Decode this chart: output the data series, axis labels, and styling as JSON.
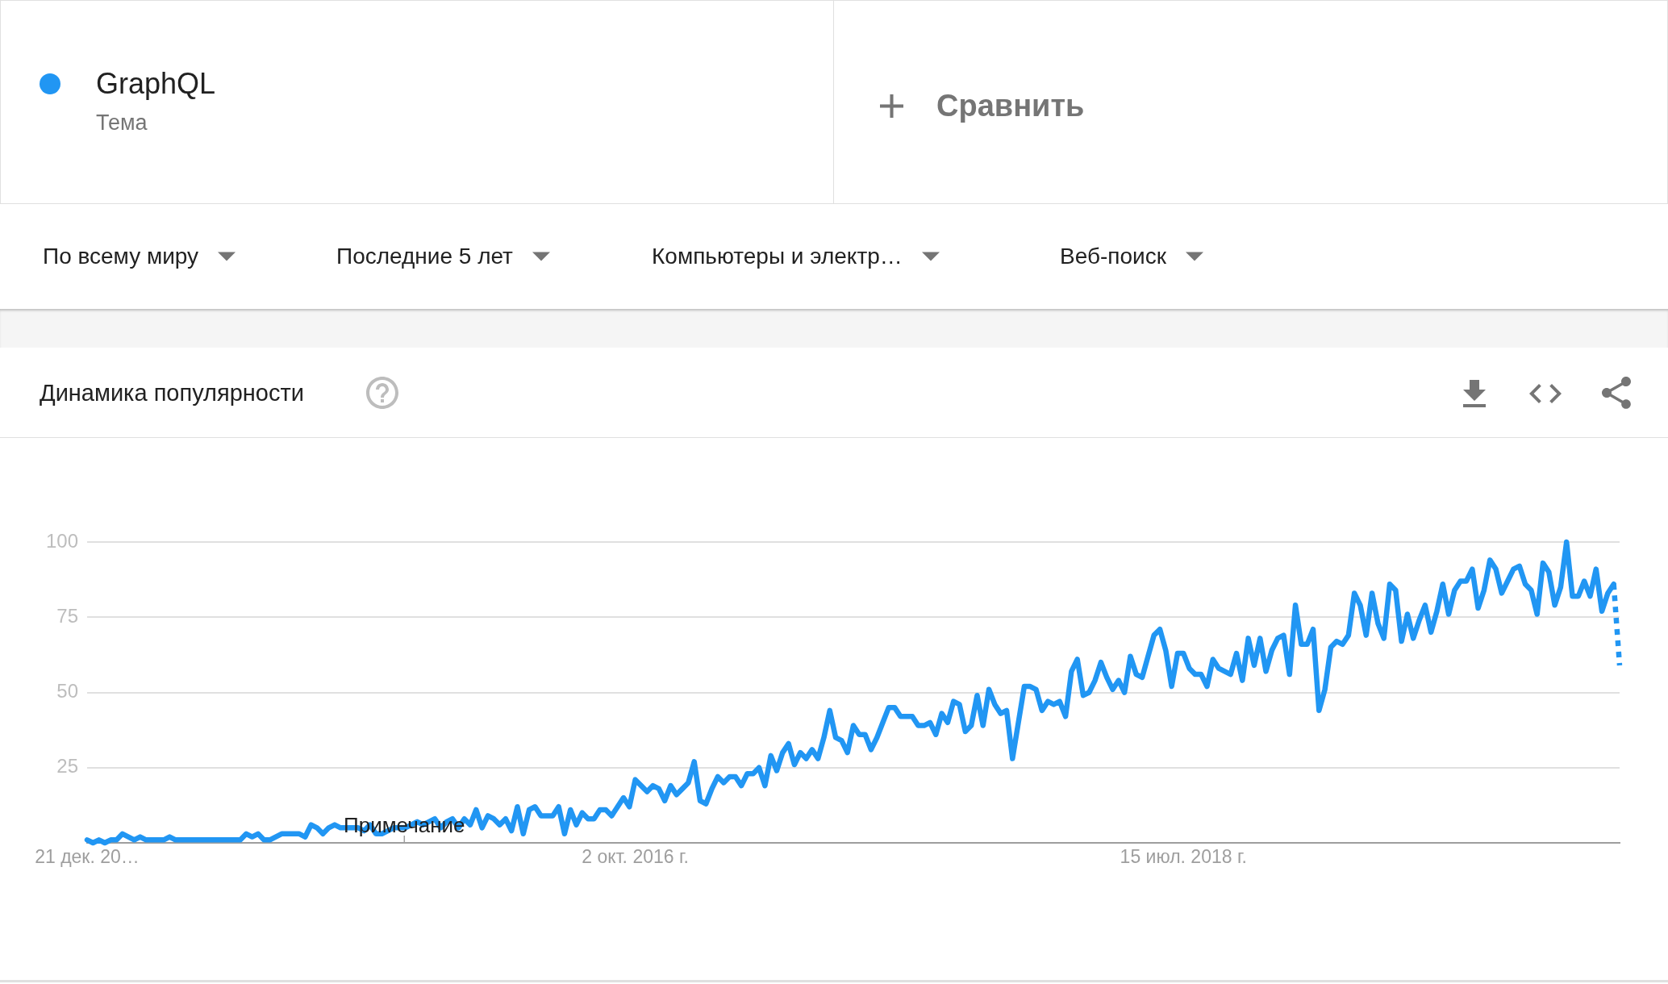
{
  "chart_data": {
    "type": "line",
    "title": "Динамика популярности",
    "legend": "top left",
    "grid": "y",
    "annotations": [
      "Тема",
      "Сравнить",
      "По всему миру",
      "Последние 5 лет",
      "Компьютеры и электр…",
      "Веб-поиск",
      "Примечание"
    ],
    "x": [
      "2014-12-21",
      "2014-12-28",
      "2015-01-04",
      "2015-01-11",
      "2015-01-18",
      "2015-01-25",
      "2015-02-01",
      "2015-02-08",
      "2015-02-15",
      "2015-02-22",
      "2015-03-01",
      "2015-03-08",
      "2015-03-15",
      "2015-03-22",
      "2015-03-29",
      "2015-04-05",
      "2015-04-12",
      "2015-04-19",
      "2015-04-26",
      "2015-05-03",
      "2015-05-10",
      "2015-05-17",
      "2015-05-24",
      "2015-05-31",
      "2015-06-07",
      "2015-06-14",
      "2015-06-21",
      "2015-06-28",
      "2015-07-05",
      "2015-07-12",
      "2015-07-19",
      "2015-07-26",
      "2015-08-02",
      "2015-08-09",
      "2015-08-16",
      "2015-08-23",
      "2015-08-30",
      "2015-09-06",
      "2015-09-13",
      "2015-09-20",
      "2015-09-27",
      "2015-10-04",
      "2015-10-11",
      "2015-10-18",
      "2015-10-25",
      "2015-11-01",
      "2015-11-08",
      "2015-11-15",
      "2015-11-22",
      "2015-11-29",
      "2015-12-06",
      "2015-12-13",
      "2015-12-20",
      "2015-12-27",
      "2016-01-03",
      "2016-01-10",
      "2016-01-17",
      "2016-01-24",
      "2016-01-31",
      "2016-02-07",
      "2016-02-14",
      "2016-02-21",
      "2016-02-28",
      "2016-03-06",
      "2016-03-13",
      "2016-03-20",
      "2016-03-27",
      "2016-04-03",
      "2016-04-10",
      "2016-04-17",
      "2016-04-24",
      "2016-05-01",
      "2016-05-08",
      "2016-05-15",
      "2016-05-22",
      "2016-05-29",
      "2016-06-05",
      "2016-06-12",
      "2016-06-19",
      "2016-06-26",
      "2016-07-03",
      "2016-07-10",
      "2016-07-17",
      "2016-07-24",
      "2016-07-31",
      "2016-08-07",
      "2016-08-14",
      "2016-08-21",
      "2016-08-28",
      "2016-09-04",
      "2016-09-11",
      "2016-09-18",
      "2016-09-25",
      "2016-10-02",
      "2016-10-09",
      "2016-10-16",
      "2016-10-23",
      "2016-10-30",
      "2016-11-06",
      "2016-11-13",
      "2016-11-20",
      "2016-11-27",
      "2016-12-04",
      "2016-12-11",
      "2016-12-18",
      "2016-12-25",
      "2017-01-01",
      "2017-01-08",
      "2017-01-15",
      "2017-01-22",
      "2017-01-29",
      "2017-02-05",
      "2017-02-12",
      "2017-02-19",
      "2017-02-26",
      "2017-03-05",
      "2017-03-12",
      "2017-03-19",
      "2017-03-26",
      "2017-04-02",
      "2017-04-09",
      "2017-04-16",
      "2017-04-23",
      "2017-04-30",
      "2017-05-07",
      "2017-05-14",
      "2017-05-21",
      "2017-05-28",
      "2017-06-04",
      "2017-06-11",
      "2017-06-18",
      "2017-06-25",
      "2017-07-02",
      "2017-07-09",
      "2017-07-16",
      "2017-07-23",
      "2017-07-30",
      "2017-08-06",
      "2017-08-13",
      "2017-08-20",
      "2017-08-27",
      "2017-09-03",
      "2017-09-10",
      "2017-09-17",
      "2017-09-24",
      "2017-10-01",
      "2017-10-08",
      "2017-10-15",
      "2017-10-22",
      "2017-10-29",
      "2017-11-05",
      "2017-11-12",
      "2017-11-19",
      "2017-11-26",
      "2017-12-03",
      "2017-12-10",
      "2017-12-17",
      "2017-12-24",
      "2017-12-31",
      "2018-01-07",
      "2018-01-14",
      "2018-01-21",
      "2018-01-28",
      "2018-02-04",
      "2018-02-11",
      "2018-02-18",
      "2018-02-25",
      "2018-03-04",
      "2018-03-11",
      "2018-03-18",
      "2018-03-25",
      "2018-04-01",
      "2018-04-08",
      "2018-04-15",
      "2018-04-22",
      "2018-04-29",
      "2018-05-06",
      "2018-05-13",
      "2018-05-20",
      "2018-05-27",
      "2018-06-03",
      "2018-06-10",
      "2018-06-17",
      "2018-06-24",
      "2018-07-01",
      "2018-07-08",
      "2018-07-15",
      "2018-07-22",
      "2018-07-29",
      "2018-08-05",
      "2018-08-12",
      "2018-08-19",
      "2018-08-26",
      "2018-09-02",
      "2018-09-09",
      "2018-09-16",
      "2018-09-23",
      "2018-09-30",
      "2018-10-07",
      "2018-10-14",
      "2018-10-21",
      "2018-10-28",
      "2018-11-04",
      "2018-11-11",
      "2018-11-18",
      "2018-11-25",
      "2018-12-02",
      "2018-12-09",
      "2018-12-16",
      "2018-12-23",
      "2018-12-30",
      "2019-01-06",
      "2019-01-13",
      "2019-01-20",
      "2019-01-27",
      "2019-02-03",
      "2019-02-10",
      "2019-02-17",
      "2019-02-24",
      "2019-03-03",
      "2019-03-10",
      "2019-03-17",
      "2019-03-24",
      "2019-03-31",
      "2019-04-07",
      "2019-04-14",
      "2019-04-21",
      "2019-04-28",
      "2019-05-05",
      "2019-05-12",
      "2019-05-19",
      "2019-05-26",
      "2019-06-02",
      "2019-06-09",
      "2019-06-16",
      "2019-06-23",
      "2019-06-30",
      "2019-07-07",
      "2019-07-14",
      "2019-07-21",
      "2019-07-28",
      "2019-08-04",
      "2019-08-11",
      "2019-08-18",
      "2019-08-25",
      "2019-09-01",
      "2019-09-08",
      "2019-09-15",
      "2019-09-22",
      "2019-09-29",
      "2019-10-06",
      "2019-10-13",
      "2019-10-20",
      "2019-10-27",
      "2019-11-03",
      "2019-11-10",
      "2019-11-17",
      "2019-11-24",
      "2019-12-01",
      "2019-12-08"
    ],
    "series": [
      {
        "name": "GraphQL",
        "color": "#2196f3",
        "values": [
          1,
          0,
          1,
          0,
          1,
          1,
          3,
          2,
          1,
          2,
          1,
          1,
          1,
          1,
          2,
          1,
          1,
          1,
          1,
          1,
          1,
          1,
          1,
          1,
          1,
          1,
          1,
          3,
          2,
          3,
          1,
          1,
          2,
          3,
          3,
          3,
          3,
          2,
          6,
          5,
          3,
          5,
          6,
          5,
          5,
          5,
          5,
          4,
          6,
          3,
          3,
          4,
          5,
          5,
          5,
          6,
          7,
          6,
          7,
          8,
          5,
          7,
          8,
          5,
          8,
          6,
          11,
          5,
          9,
          8,
          6,
          8,
          4,
          12,
          3,
          11,
          12,
          9,
          9,
          9,
          12,
          3,
          11,
          6,
          10,
          8,
          8,
          11,
          11,
          9,
          12,
          15,
          12,
          21,
          19,
          17,
          19,
          18,
          14,
          19,
          16,
          18,
          20,
          27,
          14,
          13,
          18,
          22,
          20,
          22,
          22,
          19,
          23,
          23,
          25,
          19,
          29,
          24,
          30,
          33,
          26,
          30,
          28,
          31,
          28,
          35,
          44,
          35,
          34,
          30,
          39,
          36,
          36,
          31,
          35,
          40,
          45,
          45,
          42,
          42,
          42,
          39,
          39,
          40,
          36,
          43,
          40,
          47,
          46,
          37,
          39,
          49,
          39,
          51,
          46,
          43,
          44,
          28,
          40,
          52,
          52,
          51,
          44,
          47,
          46,
          47,
          42,
          57,
          61,
          49,
          50,
          54,
          60,
          55,
          51,
          54,
          50,
          62,
          56,
          55,
          62,
          69,
          71,
          64,
          52,
          63,
          63,
          58,
          56,
          56,
          52,
          61,
          58,
          57,
          56,
          63,
          54,
          68,
          59,
          68,
          57,
          64,
          68,
          69,
          56,
          79,
          66,
          66,
          71,
          44,
          51,
          65,
          67,
          66,
          69,
          83,
          79,
          69,
          83,
          73,
          68,
          86,
          84,
          67,
          76,
          68,
          74,
          79,
          70,
          77,
          86,
          76,
          84,
          87,
          87,
          91,
          78,
          84,
          94,
          91,
          83,
          87,
          91,
          92,
          86,
          84,
          76,
          93,
          90,
          79,
          85,
          100,
          82,
          82,
          87,
          82,
          91,
          77,
          83,
          86
        ]
      },
      {
        "color": "#2196f3",
        "line_style": "dotted",
        "x": [
          "2019-12-08",
          "2019-12-15"
        ],
        "values": [
          86,
          59
        ]
      }
    ],
    "xlim": [
      "2014-12-21",
      "2019-12-15"
    ],
    "xticks": [
      {
        "value": "2014-12-21",
        "label": "21 дек. 20…"
      },
      {
        "value": "2016-10-02",
        "label": "2 окт. 2016 г."
      },
      {
        "value": "2018-07-15",
        "label": "15 июл. 2018 г."
      }
    ],
    "ylim": [
      0,
      100
    ],
    "yticks": [
      25,
      50,
      75,
      100
    ]
  }
}
